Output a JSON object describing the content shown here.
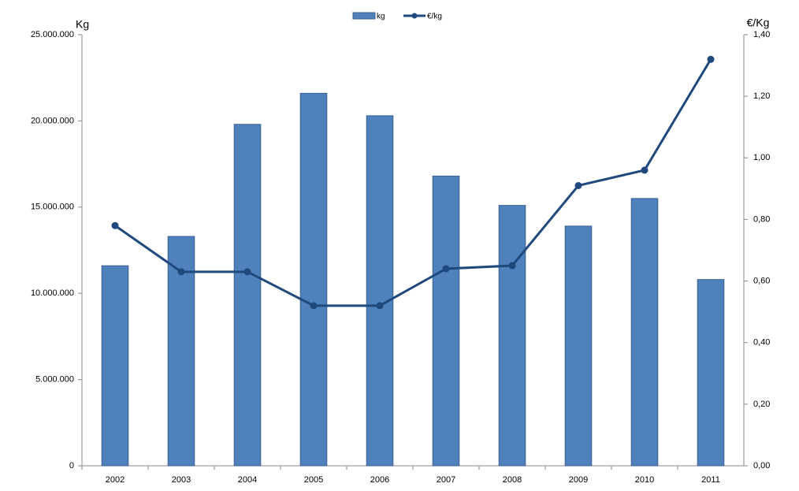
{
  "chart_data": {
    "type": "bar-line",
    "y_label": "Kg",
    "y2_label": "€/Kg",
    "categories": [
      "2002",
      "2003",
      "2004",
      "2005",
      "2006",
      "2007",
      "2008",
      "2009",
      "2010",
      "2011"
    ],
    "series": [
      {
        "name": "kg",
        "type": "bar",
        "color": "#4f81bd",
        "values": [
          11600000,
          13300000,
          19800000,
          21600000,
          20300000,
          16800000,
          15100000,
          13900000,
          15500000,
          10800000
        ]
      },
      {
        "name": "€/kg",
        "type": "line",
        "axis": "y2",
        "color": "#1f497d",
        "values": [
          0.78,
          0.63,
          0.63,
          0.52,
          0.52,
          0.64,
          0.65,
          0.91,
          0.96,
          1.32
        ]
      }
    ],
    "ylim": [
      0,
      25000000
    ],
    "yticks": [
      0,
      {
        "value": 5000000,
        "label": "5.000.000"
      },
      {
        "value": 10000000,
        "label": "10.000.000"
      },
      {
        "value": 15000000,
        "label": "15.000.000"
      },
      {
        "value": 20000000,
        "label": "20.000.000"
      },
      {
        "value": 25000000,
        "label": "25.000.000"
      }
    ],
    "y2lim": [
      0,
      1.4
    ],
    "y2ticks": [
      {
        "value": 0,
        "label": "0,00"
      },
      {
        "value": 0.2,
        "label": "0,20"
      },
      {
        "value": 0.4,
        "label": "0,40"
      },
      {
        "value": 0.6,
        "label": "0,60"
      },
      {
        "value": 0.8,
        "label": "0,80"
      },
      {
        "value": 1.0,
        "label": "1,00"
      },
      {
        "value": 1.2,
        "label": "1,20"
      },
      {
        "value": 1.4,
        "label": "1,40"
      }
    ],
    "legend": "top",
    "grid": false
  }
}
